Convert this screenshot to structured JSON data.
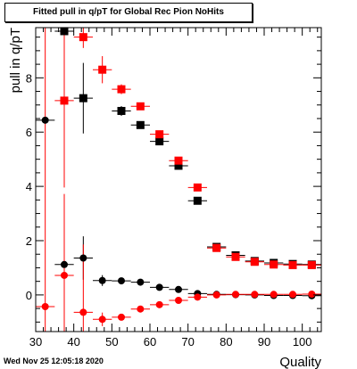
{
  "title": "Fitted pull in q/pT for Global Rec Pion NoHits",
  "footer": {
    "date": "Wed Nov 25 12:05:18 2020"
  },
  "chart_data": {
    "type": "scatter",
    "title": "Fitted pull in q/pT for Global Rec Pion NoHits",
    "xlabel": "Quality",
    "ylabel": "pull in q/pT",
    "xlim": [
      30,
      105
    ],
    "ylim": [
      -1.35,
      9.85
    ],
    "x_ticks": [
      30,
      40,
      50,
      60,
      70,
      80,
      90,
      100
    ],
    "y_ticks": [
      0,
      2,
      4,
      6,
      8
    ],
    "x_err": 2.5,
    "series": [
      {
        "marker": "square",
        "color": "#000000",
        "points": [
          {
            "x": 37.5,
            "y": 9.72,
            "err": 0.4
          },
          {
            "x": 42.5,
            "y": 7.25,
            "err": 1.3
          },
          {
            "x": 52.5,
            "y": 6.78,
            "err": 0.18
          },
          {
            "x": 57.5,
            "y": 6.26,
            "err": 0.1
          },
          {
            "x": 62.5,
            "y": 5.66,
            "err": 0.08
          },
          {
            "x": 67.5,
            "y": 4.76,
            "err": 0.08
          },
          {
            "x": 72.5,
            "y": 3.47,
            "err": 0.08
          },
          {
            "x": 77.5,
            "y": 1.77,
            "err": 0.06
          },
          {
            "x": 82.5,
            "y": 1.46,
            "err": 0.05
          },
          {
            "x": 87.5,
            "y": 1.25,
            "err": 0.05
          },
          {
            "x": 92.5,
            "y": 1.18,
            "err": 0.05
          },
          {
            "x": 97.5,
            "y": 1.14,
            "err": 0.05
          },
          {
            "x": 102.5,
            "y": 1.12,
            "err": 0.05
          }
        ]
      },
      {
        "marker": "square",
        "color": "#ff0000",
        "points": [
          {
            "x": 37.5,
            "y": 7.16,
            "err": 3.2
          },
          {
            "x": 42.5,
            "y": 9.5,
            "err": 0.4
          },
          {
            "x": 47.5,
            "y": 8.3,
            "err": 0.5
          },
          {
            "x": 52.5,
            "y": 7.58,
            "err": 0.18
          },
          {
            "x": 57.5,
            "y": 6.95,
            "err": 0.1
          },
          {
            "x": 62.5,
            "y": 5.92,
            "err": 0.08
          },
          {
            "x": 67.5,
            "y": 4.95,
            "err": 0.08
          },
          {
            "x": 72.5,
            "y": 3.96,
            "err": 0.08
          },
          {
            "x": 77.5,
            "y": 1.73,
            "err": 0.06
          },
          {
            "x": 82.5,
            "y": 1.4,
            "err": 0.05
          },
          {
            "x": 87.5,
            "y": 1.22,
            "err": 0.05
          },
          {
            "x": 92.5,
            "y": 1.12,
            "err": 0.05
          },
          {
            "x": 97.5,
            "y": 1.1,
            "err": 0.05
          },
          {
            "x": 102.5,
            "y": 1.1,
            "err": 0.05
          }
        ]
      },
      {
        "marker": "circle",
        "color": "#000000",
        "points": [
          {
            "x": 32.5,
            "y": 6.44,
            "err": 0.0
          },
          {
            "x": 37.5,
            "y": 1.12,
            "err": 2.5
          },
          {
            "x": 42.5,
            "y": 1.36,
            "err": 0.8
          },
          {
            "x": 47.5,
            "y": 0.53,
            "err": 0.2
          },
          {
            "x": 52.5,
            "y": 0.52,
            "err": 0.12
          },
          {
            "x": 57.5,
            "y": 0.47,
            "err": 0.08
          },
          {
            "x": 62.5,
            "y": 0.28,
            "err": 0.06
          },
          {
            "x": 67.5,
            "y": 0.2,
            "err": 0.05
          },
          {
            "x": 72.5,
            "y": 0.05,
            "err": 0.05
          },
          {
            "x": 77.5,
            "y": 0.02,
            "err": 0.04
          },
          {
            "x": 82.5,
            "y": 0.01,
            "err": 0.03
          },
          {
            "x": 87.5,
            "y": 0.0,
            "err": 0.03
          },
          {
            "x": 92.5,
            "y": -0.02,
            "err": 0.03
          },
          {
            "x": 97.5,
            "y": -0.02,
            "err": 0.03
          },
          {
            "x": 102.5,
            "y": -0.03,
            "err": 0.03
          }
        ]
      },
      {
        "marker": "circle",
        "color": "#ff0000",
        "points": [
          {
            "x": 32.5,
            "y": -0.43,
            "err": 10.5
          },
          {
            "x": 37.5,
            "y": 0.72,
            "err": 3.0
          },
          {
            "x": 42.5,
            "y": -0.64,
            "err": 2.5
          },
          {
            "x": 47.5,
            "y": -0.9,
            "err": 0.25
          },
          {
            "x": 52.5,
            "y": -0.82,
            "err": 0.12
          },
          {
            "x": 57.5,
            "y": -0.52,
            "err": 0.08
          },
          {
            "x": 62.5,
            "y": -0.36,
            "err": 0.06
          },
          {
            "x": 67.5,
            "y": -0.2,
            "err": 0.05
          },
          {
            "x": 72.5,
            "y": -0.08,
            "err": 0.05
          },
          {
            "x": 77.5,
            "y": 0.0,
            "err": 0.04
          },
          {
            "x": 82.5,
            "y": 0.02,
            "err": 0.03
          },
          {
            "x": 87.5,
            "y": 0.02,
            "err": 0.03
          },
          {
            "x": 92.5,
            "y": 0.02,
            "err": 0.03
          },
          {
            "x": 97.5,
            "y": 0.02,
            "err": 0.03
          },
          {
            "x": 102.5,
            "y": 0.03,
            "err": 0.03
          }
        ]
      }
    ]
  }
}
